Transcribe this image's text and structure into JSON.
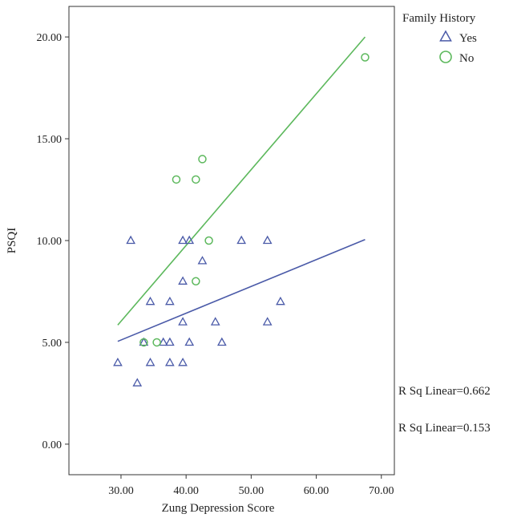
{
  "chart_data": {
    "type": "scatter",
    "xlabel": "Zung Depression Score",
    "ylabel": "PSQI",
    "xlim": [
      22,
      72
    ],
    "ylim": [
      -1.5,
      21.5
    ],
    "xticks": [
      30,
      40,
      50,
      60,
      70
    ],
    "yticks": [
      0,
      5,
      10,
      15,
      20
    ],
    "xtick_labels": [
      "30.00",
      "40.00",
      "50.00",
      "60.00",
      "70.00"
    ],
    "ytick_labels": [
      "0.00",
      "5.00",
      "10.00",
      "15.00",
      "20.00"
    ],
    "grid": false,
    "legend": {
      "title": "Family History",
      "position": "top-right",
      "entries": [
        {
          "name": "Yes",
          "marker": "triangle",
          "color": "#4a5aa8"
        },
        {
          "name": "No",
          "marker": "circle",
          "color": "#5cb85c"
        }
      ]
    },
    "series": [
      {
        "name": "Yes",
        "marker": "triangle",
        "color": "#4a5aa8",
        "points": [
          [
            29.5,
            4
          ],
          [
            31.5,
            10
          ],
          [
            32.5,
            3
          ],
          [
            33.5,
            5
          ],
          [
            34.5,
            7
          ],
          [
            34.5,
            4
          ],
          [
            36.5,
            5
          ],
          [
            37.5,
            7
          ],
          [
            37.5,
            5
          ],
          [
            37.5,
            4
          ],
          [
            39.5,
            10
          ],
          [
            39.5,
            8
          ],
          [
            39.5,
            6
          ],
          [
            39.5,
            4
          ],
          [
            40.5,
            10
          ],
          [
            40.5,
            5
          ],
          [
            42.5,
            9
          ],
          [
            44.5,
            6
          ],
          [
            45.5,
            5
          ],
          [
            48.5,
            10
          ],
          [
            52.5,
            10
          ],
          [
            52.5,
            6
          ],
          [
            54.5,
            7
          ]
        ],
        "fit": {
          "x": [
            29.5,
            67.5
          ],
          "y": [
            5.05,
            10.05
          ]
        },
        "r2_label": "R Sq Linear=0.153"
      },
      {
        "name": "No",
        "marker": "circle",
        "color": "#5cb85c",
        "points": [
          [
            33.5,
            5
          ],
          [
            35.5,
            5
          ],
          [
            38.5,
            13
          ],
          [
            41.5,
            13
          ],
          [
            41.5,
            8
          ],
          [
            42.5,
            14
          ],
          [
            43.5,
            10
          ],
          [
            67.5,
            19
          ]
        ],
        "fit": {
          "x": [
            29.5,
            67.5
          ],
          "y": [
            5.85,
            20.0
          ]
        },
        "r2_label": "R Sq Linear=0.662"
      }
    ]
  }
}
